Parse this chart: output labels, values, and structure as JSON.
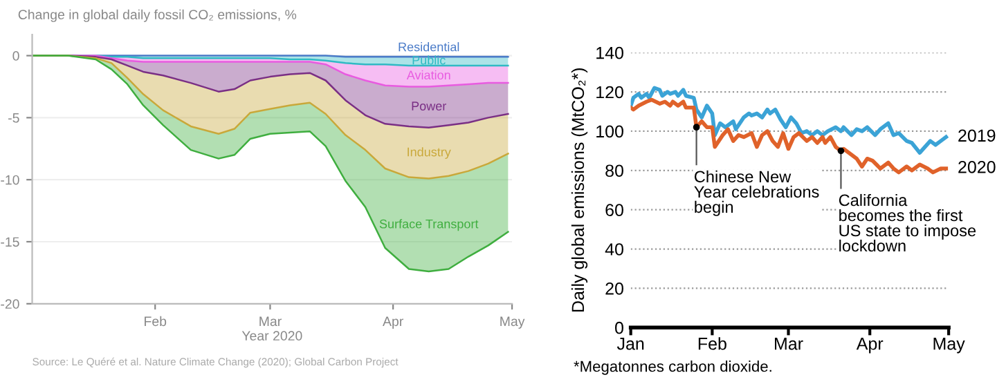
{
  "chart_data": [
    {
      "type": "area",
      "stacked": true,
      "title": "Change in global daily fossil CO₂ emissions, %",
      "xlabel": "Year 2020",
      "x": [
        "2020-01-01",
        "2020-01-10",
        "2020-01-17",
        "2020-01-21",
        "2020-01-25",
        "2020-01-29",
        "2020-02-03",
        "2020-02-10",
        "2020-02-17",
        "2020-02-21",
        "2020-02-25",
        "2020-03-01",
        "2020-03-06",
        "2020-03-11",
        "2020-03-15",
        "2020-03-20",
        "2020-03-25",
        "2020-03-30",
        "2020-04-05",
        "2020-04-10",
        "2020-04-15",
        "2020-04-20",
        "2020-04-25",
        "2020-04-30"
      ],
      "series": [
        {
          "name": "Residential",
          "color": "#4a7bc8",
          "values": [
            0,
            0,
            0,
            0,
            0,
            0,
            0,
            0,
            0,
            0,
            0,
            0,
            0,
            0,
            0,
            -0.1,
            -0.1,
            -0.1,
            -0.1,
            -0.1,
            -0.1,
            -0.1,
            -0.1,
            -0.1
          ]
        },
        {
          "name": "Public",
          "color": "#2fbac4",
          "values": [
            0,
            0,
            0,
            -0.1,
            -0.1,
            -0.2,
            -0.2,
            -0.2,
            -0.2,
            -0.2,
            -0.2,
            -0.2,
            -0.3,
            -0.3,
            -0.4,
            -0.5,
            -0.6,
            -0.6,
            -0.7,
            -0.7,
            -0.7,
            -0.7,
            -0.7,
            -0.7
          ]
        },
        {
          "name": "Aviation",
          "color": "#e85be0",
          "values": [
            0,
            0,
            0,
            -0.1,
            -0.3,
            -0.3,
            -0.3,
            -0.3,
            -0.3,
            -0.3,
            -0.3,
            -0.3,
            -0.2,
            -0.2,
            -0.3,
            -0.9,
            -1.3,
            -1.7,
            -1.7,
            -1.7,
            -1.6,
            -1.5,
            -1.4,
            -1.4
          ]
        },
        {
          "name": "Power",
          "color": "#7a2f85",
          "values": [
            0,
            0,
            -0.1,
            -0.1,
            -0.4,
            -0.8,
            -1.1,
            -1.7,
            -2.4,
            -2.2,
            -1.5,
            -1.2,
            -1.0,
            -0.9,
            -1.3,
            -2.1,
            -2.8,
            -3.1,
            -3.2,
            -3.3,
            -3.2,
            -3.1,
            -2.8,
            -2.5
          ]
        },
        {
          "name": "Industry",
          "color": "#c9a83a",
          "values": [
            0,
            0,
            -0.1,
            -0.3,
            -1.0,
            -1.8,
            -2.8,
            -3.5,
            -3.4,
            -3.2,
            -2.6,
            -2.6,
            -2.5,
            -2.4,
            -2.7,
            -2.8,
            -2.8,
            -3.6,
            -4.1,
            -4.1,
            -4.1,
            -3.9,
            -3.7,
            -3.2
          ]
        },
        {
          "name": "Surface Transport",
          "color": "#3fae3f",
          "values": [
            0,
            0,
            -0.1,
            -0.5,
            -0.5,
            -0.9,
            -1.2,
            -1.9,
            -2.0,
            -2.1,
            -2.1,
            -2.0,
            -2.2,
            -2.3,
            -2.6,
            -3.7,
            -4.6,
            -6.4,
            -7.4,
            -7.5,
            -7.5,
            -6.9,
            -6.6,
            -6.3
          ]
        }
      ],
      "xlim": [
        "2020-01-01",
        "2020-05-01"
      ],
      "xticks": [
        {
          "value": "2020-02-01",
          "label": "Feb"
        },
        {
          "value": "2020-03-01",
          "label": "Mar"
        },
        {
          "value": "2020-04-01",
          "label": "Apr"
        },
        {
          "value": "2020-05-01",
          "label": "May"
        }
      ],
      "ylim": [
        -20,
        1.7
      ],
      "yticks": [
        0,
        -5,
        -10,
        -15,
        -20
      ],
      "grid": "y",
      "annotations": [
        "Source: Le Quéré et al. Nature Climate Change (2020); Global Carbon Project"
      ]
    },
    {
      "type": "line",
      "ylabel": "Daily global emissions (MtCO₂*)",
      "series": [
        {
          "name": "2019",
          "color": "#3ba3d6",
          "x": [
            "2020-01-01",
            "2020-01-02",
            "2020-01-04",
            "2020-01-05",
            "2020-01-07",
            "2020-01-08",
            "2020-01-10",
            "2020-01-12",
            "2020-01-13",
            "2020-01-15",
            "2020-01-16",
            "2020-01-18",
            "2020-01-19",
            "2020-01-21",
            "2020-01-22",
            "2020-01-25",
            "2020-01-26",
            "2020-01-28",
            "2020-01-30",
            "2020-02-01",
            "2020-02-02",
            "2020-02-04",
            "2020-02-06",
            "2020-02-09",
            "2020-02-10",
            "2020-02-13",
            "2020-02-15",
            "2020-02-16",
            "2020-02-18",
            "2020-02-20",
            "2020-02-22",
            "2020-02-23",
            "2020-02-25",
            "2020-02-27",
            "2020-02-29",
            "2020-03-02",
            "2020-03-04",
            "2020-03-06",
            "2020-03-08",
            "2020-03-10",
            "2020-03-12",
            "2020-03-14",
            "2020-03-16",
            "2020-03-19",
            "2020-03-21",
            "2020-03-22",
            "2020-03-25",
            "2020-03-27",
            "2020-03-29",
            "2020-03-31",
            "2020-04-03",
            "2020-04-05",
            "2020-04-08",
            "2020-04-10",
            "2020-04-12",
            "2020-04-15",
            "2020-04-17",
            "2020-04-20",
            "2020-04-22",
            "2020-04-24",
            "2020-04-26",
            "2020-04-28",
            "2020-04-30"
          ],
          "values": [
            113,
            117,
            119,
            117,
            119,
            117,
            122,
            121,
            118,
            120,
            119,
            120,
            118,
            121,
            118,
            117,
            111,
            107,
            113,
            109,
            98,
            104,
            102,
            105,
            101,
            107,
            109,
            108,
            109,
            107,
            111,
            109,
            111,
            106,
            102,
            107,
            104,
            99,
            100,
            98,
            100,
            98,
            100,
            102,
            100,
            102,
            98,
            101,
            100,
            102,
            98,
            101,
            104,
            98,
            99,
            95,
            94,
            89,
            92,
            95,
            93,
            95,
            97
          ]
        },
        {
          "name": "2020",
          "color": "#e0622a",
          "x": [
            "2020-01-01",
            "2020-01-02",
            "2020-01-04",
            "2020-01-07",
            "2020-01-09",
            "2020-01-12",
            "2020-01-14",
            "2020-01-16",
            "2020-01-17",
            "2020-01-19",
            "2020-01-21",
            "2020-01-22",
            "2020-01-25",
            "2020-01-26",
            "2020-01-28",
            "2020-01-30",
            "2020-02-01",
            "2020-02-02",
            "2020-02-05",
            "2020-02-07",
            "2020-02-09",
            "2020-02-11",
            "2020-02-13",
            "2020-02-16",
            "2020-02-18",
            "2020-02-20",
            "2020-02-22",
            "2020-02-24",
            "2020-02-26",
            "2020-02-28",
            "2020-03-01",
            "2020-03-03",
            "2020-03-05",
            "2020-03-08",
            "2020-03-10",
            "2020-03-12",
            "2020-03-14",
            "2020-03-15",
            "2020-03-17",
            "2020-03-19",
            "2020-03-21",
            "2020-03-22",
            "2020-03-25",
            "2020-03-27",
            "2020-03-29",
            "2020-03-31",
            "2020-04-02",
            "2020-04-05",
            "2020-04-08",
            "2020-04-10",
            "2020-04-12",
            "2020-04-15",
            "2020-04-17",
            "2020-04-20",
            "2020-04-23",
            "2020-04-25",
            "2020-04-28",
            "2020-04-30"
          ],
          "values": [
            112,
            111,
            113,
            115,
            116,
            114,
            115,
            113,
            115,
            113,
            115,
            112,
            112,
            102,
            105,
            102,
            102,
            92,
            98,
            101,
            95,
            98,
            97,
            99,
            92,
            98,
            100,
            95,
            92,
            99,
            91,
            97,
            99,
            95,
            97,
            94,
            97,
            94,
            97,
            92,
            90,
            91,
            88,
            86,
            82,
            86,
            85,
            81,
            84,
            81,
            79,
            82,
            80,
            83,
            81,
            79,
            81,
            81
          ]
        }
      ],
      "xlim": [
        "2020-01-01",
        "2020-05-01"
      ],
      "xticks": [
        {
          "value": "2020-01-01",
          "label": "Jan"
        },
        {
          "value": "2020-02-01",
          "label": "Feb"
        },
        {
          "value": "2020-03-01",
          "label": "Mar"
        },
        {
          "value": "2020-04-01",
          "label": "Apr"
        },
        {
          "value": "2020-05-01",
          "label": "May"
        }
      ],
      "ylim": [
        0,
        140
      ],
      "yticks": [
        0,
        20,
        40,
        60,
        80,
        100,
        120,
        140
      ],
      "grid": "y",
      "line_style": "solid",
      "marker": "none",
      "annotations": [
        {
          "text": "Chinese New\nYear celebrations\nbegin",
          "x": "2020-01-26",
          "y": 102
        },
        {
          "text": "California\nbecomes the first\nUS state to impose\nlockdown",
          "x": "2020-03-21",
          "y": 90
        },
        "*Megatonnes carbon dioxide."
      ]
    }
  ]
}
